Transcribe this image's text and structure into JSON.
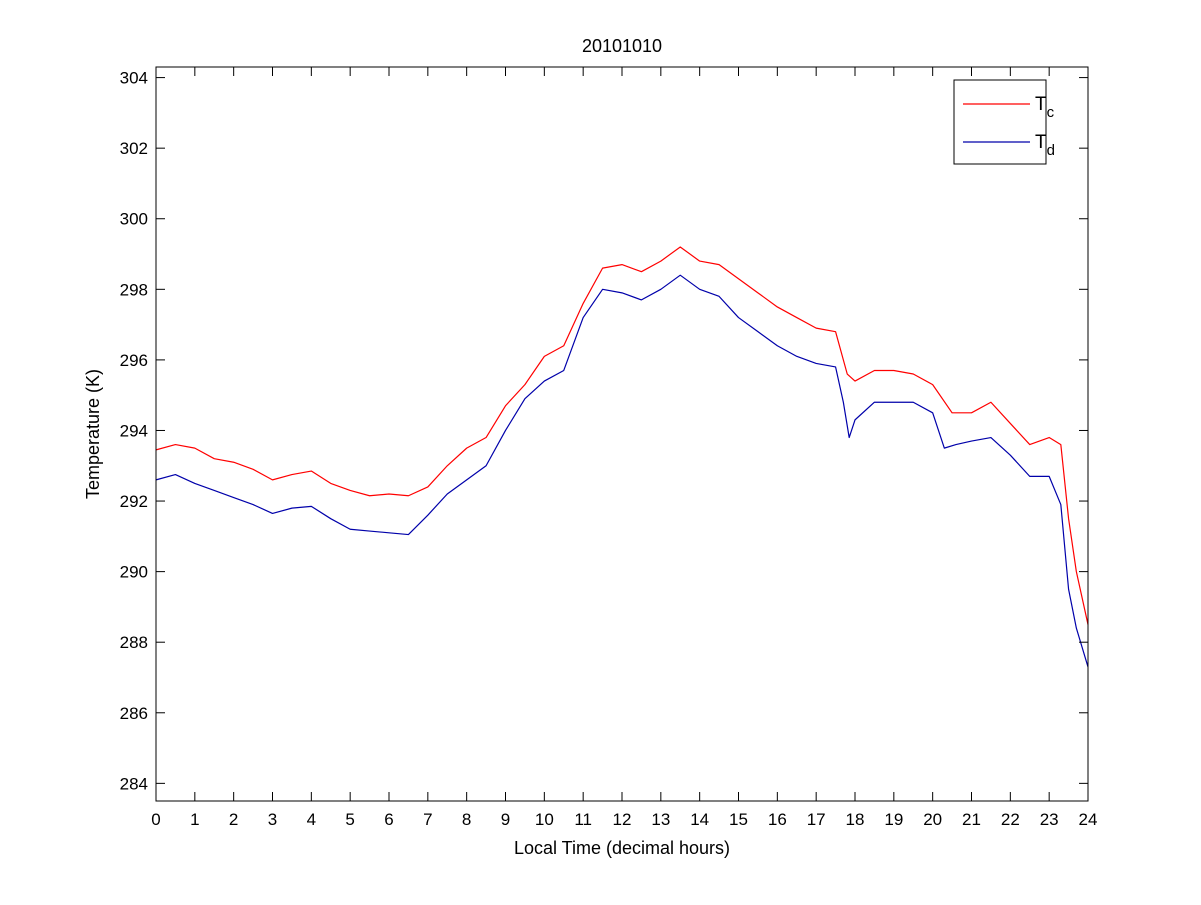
{
  "chart_data": {
    "type": "line",
    "title": "20101010",
    "xlabel": "Local Time (decimal hours)",
    "ylabel": "Temperature (K)",
    "xlim": [
      0,
      24
    ],
    "ylim": [
      283.5,
      304.3
    ],
    "xticks": [
      0,
      1,
      2,
      3,
      4,
      5,
      6,
      7,
      8,
      9,
      10,
      11,
      12,
      13,
      14,
      15,
      16,
      17,
      18,
      19,
      20,
      21,
      22,
      23,
      24
    ],
    "yticks": [
      284,
      286,
      288,
      290,
      292,
      294,
      296,
      298,
      300,
      302,
      304
    ],
    "grid": false,
    "legend_position": "top-right",
    "series": [
      {
        "name": "T",
        "subscript": "c",
        "color": "#ff0000",
        "x": [
          0,
          0.5,
          1,
          1.5,
          2,
          2.5,
          3,
          3.5,
          4,
          4.5,
          5,
          5.5,
          6,
          6.5,
          7,
          7.5,
          8,
          8.5,
          9,
          9.5,
          10,
          10.5,
          11,
          11.5,
          12,
          12.5,
          13,
          13.5,
          14,
          14.5,
          15,
          15.5,
          16,
          16.5,
          17,
          17.5,
          17.8,
          18,
          18.5,
          19,
          19.5,
          20,
          20.5,
          21,
          21.5,
          22,
          22.5,
          23,
          23.3,
          23.5,
          23.7,
          24
        ],
        "y": [
          293.45,
          293.6,
          293.5,
          293.2,
          293.1,
          292.9,
          292.6,
          292.75,
          292.85,
          292.5,
          292.3,
          292.15,
          292.2,
          292.15,
          292.4,
          293.0,
          293.5,
          293.8,
          294.7,
          295.3,
          296.1,
          296.4,
          297.6,
          298.6,
          298.7,
          298.5,
          298.8,
          299.2,
          298.8,
          298.7,
          298.3,
          297.9,
          297.5,
          297.2,
          296.9,
          296.8,
          295.6,
          295.4,
          295.7,
          295.7,
          295.6,
          295.3,
          294.5,
          294.5,
          294.8,
          294.2,
          293.6,
          293.8,
          293.6,
          291.5,
          290.0,
          288.5
        ]
      },
      {
        "name": "T",
        "subscript": "d",
        "color": "#0000aa",
        "x": [
          0,
          0.5,
          1,
          1.5,
          2,
          2.5,
          3,
          3.5,
          4,
          4.5,
          5,
          5.5,
          6,
          6.5,
          7,
          7.5,
          8,
          8.5,
          9,
          9.5,
          10,
          10.5,
          11,
          11.5,
          12,
          12.5,
          13,
          13.5,
          14,
          14.5,
          15,
          15.5,
          16,
          16.5,
          17,
          17.5,
          17.7,
          17.85,
          18,
          18.5,
          19,
          19.5,
          20,
          20.3,
          20.6,
          21,
          21.5,
          22,
          22.5,
          23,
          23.3,
          23.5,
          23.7,
          24
        ],
        "y": [
          292.6,
          292.75,
          292.5,
          292.3,
          292.1,
          291.9,
          291.65,
          291.8,
          291.85,
          291.5,
          291.2,
          291.15,
          291.1,
          291.05,
          291.6,
          292.2,
          292.6,
          293.0,
          294.0,
          294.9,
          295.4,
          295.7,
          297.2,
          298.0,
          297.9,
          297.7,
          298.0,
          298.4,
          298.0,
          297.8,
          297.2,
          296.8,
          296.4,
          296.1,
          295.9,
          295.8,
          294.8,
          293.8,
          294.3,
          294.8,
          294.8,
          294.8,
          294.5,
          293.5,
          293.6,
          293.7,
          293.8,
          293.3,
          292.7,
          292.7,
          291.9,
          289.5,
          288.4,
          287.3
        ]
      }
    ]
  }
}
